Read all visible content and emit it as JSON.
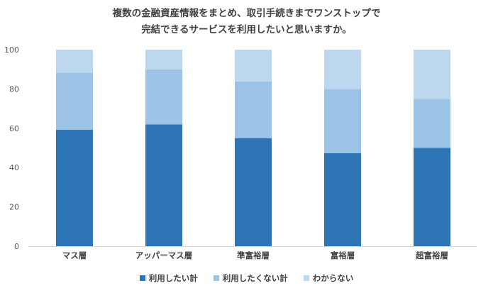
{
  "chart_data": {
    "type": "bar",
    "stacked": true,
    "title_lines": [
      "複数の金融資産情報をまとめ、取引手続きまでワンストップで",
      "完結できるサービスを利用したいと思いますか。"
    ],
    "categories": [
      "マス層",
      "アッパーマス層",
      "準富裕層",
      "富裕層",
      "超富裕層"
    ],
    "series": [
      {
        "name": "利用したい計",
        "color": "#2E75B6",
        "values": [
          59.2,
          62,
          55,
          47.3,
          50
        ]
      },
      {
        "name": "利用したくない計",
        "color": "#9DC3E6",
        "values": [
          29.1,
          28,
          28.8,
          32.7,
          25
        ]
      },
      {
        "name": "わからない",
        "color": "#BDD7EE",
        "values": [
          11.7,
          10,
          16.2,
          20,
          25
        ]
      }
    ],
    "ylim": [
      0,
      100
    ],
    "yticks": [
      0,
      20,
      40,
      60,
      80,
      100
    ],
    "grid": false,
    "legend_position": "bottom"
  }
}
